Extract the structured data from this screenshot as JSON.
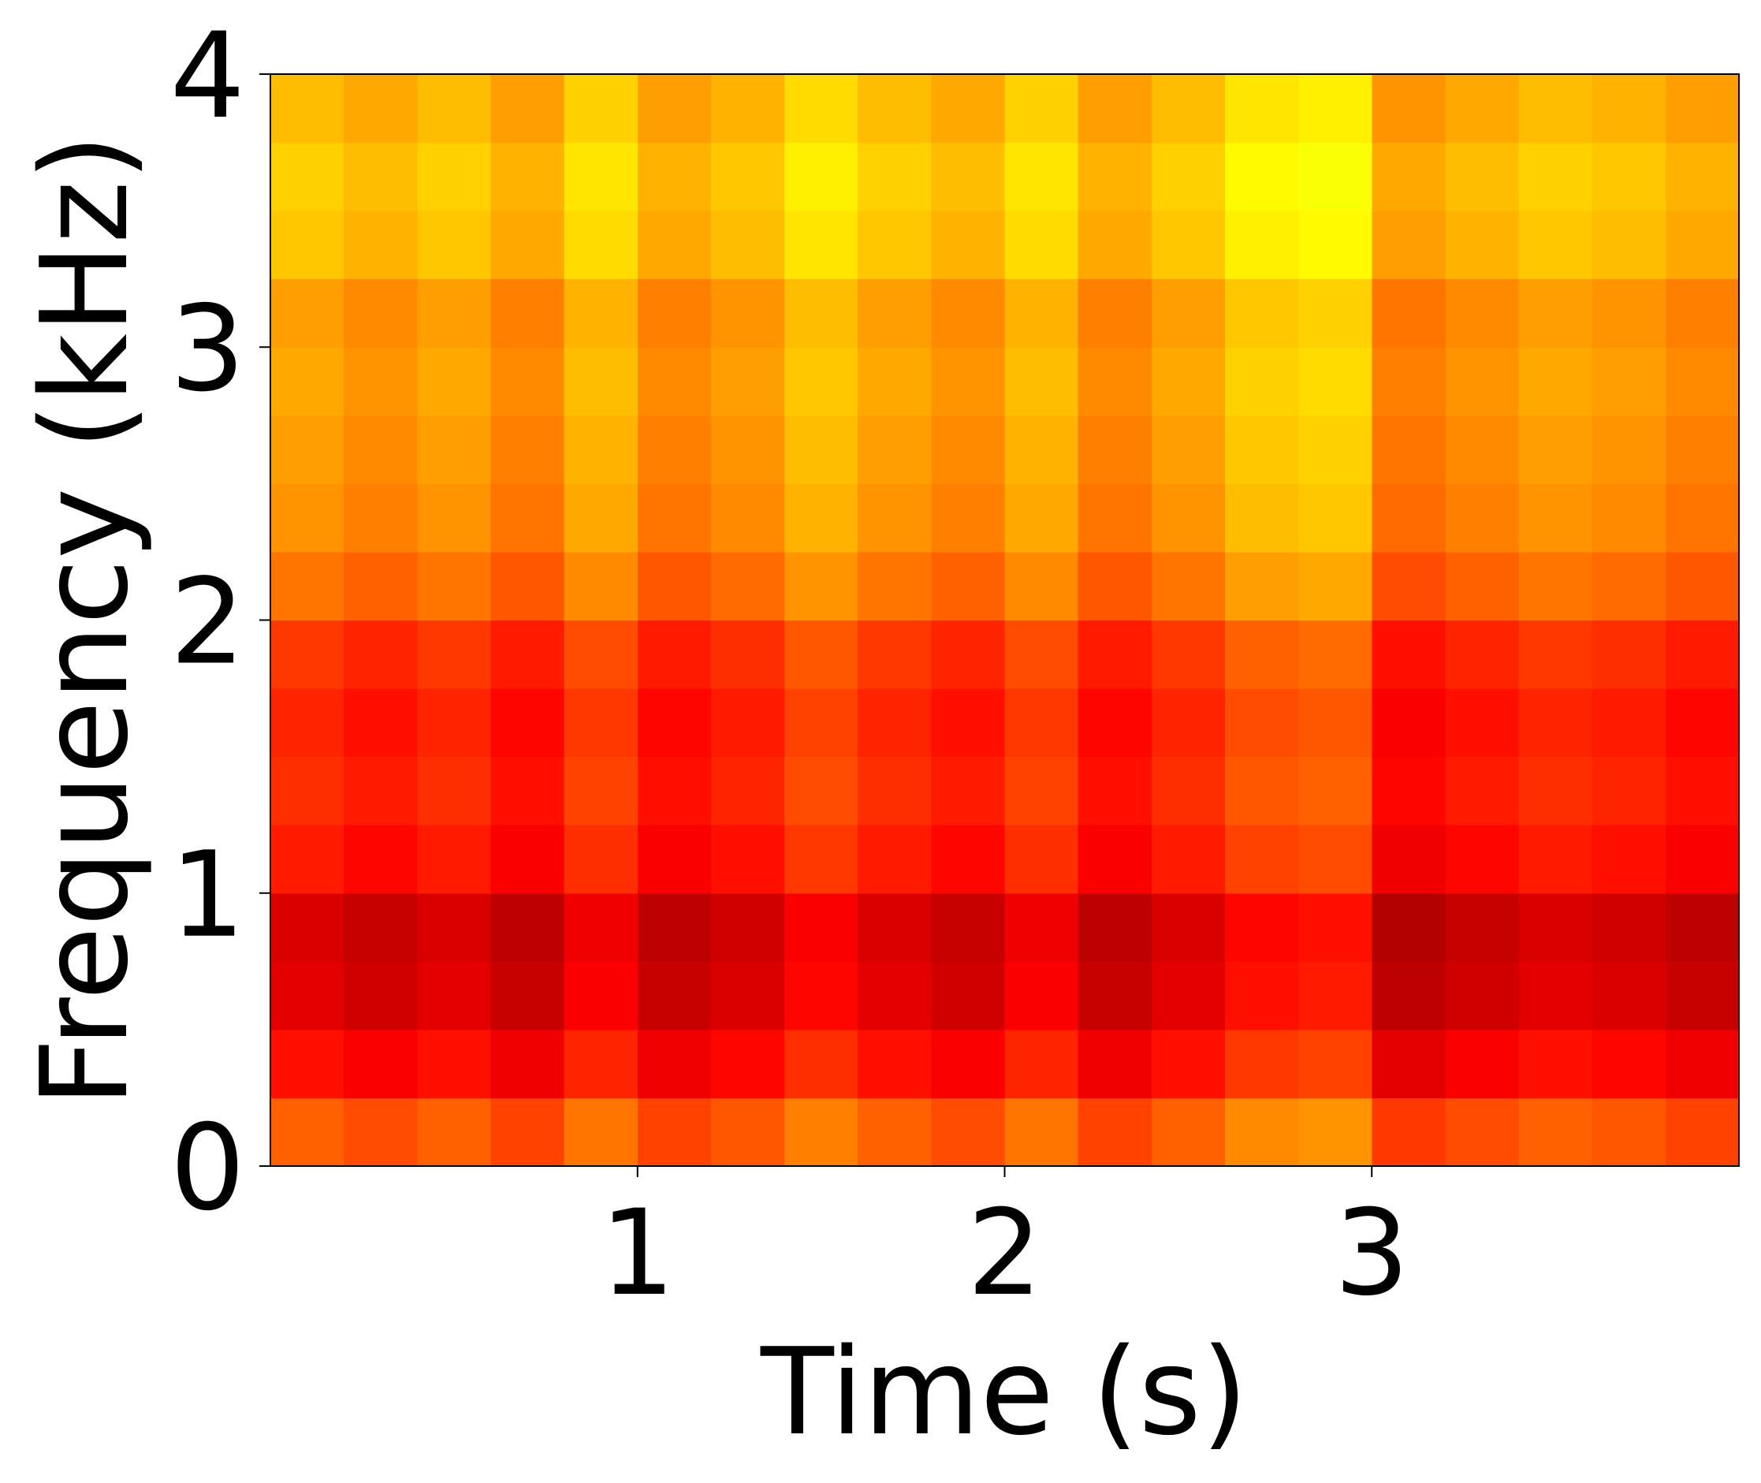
{
  "chart_data": {
    "type": "heatmap",
    "xlabel": "Time (s)",
    "ylabel": "Frequency (kHz)",
    "colormap": "jet",
    "zlim": [
      0,
      1
    ],
    "xlim": [
      0,
      4
    ],
    "ylim": [
      0,
      4
    ],
    "xticks": [
      1,
      2,
      3
    ],
    "yticks": [
      0,
      1,
      2,
      3,
      4
    ],
    "x": [
      0,
      0.2,
      0.4,
      0.6,
      0.8,
      1.0,
      1.2,
      1.4,
      1.6,
      1.8,
      2.0,
      2.2,
      2.4,
      2.6,
      2.8,
      3.0,
      3.2,
      3.4,
      3.6,
      3.8,
      4.0
    ],
    "y": [
      0,
      0.25,
      0.5,
      0.75,
      1.0,
      1.25,
      1.5,
      1.75,
      2.0,
      2.25,
      2.5,
      2.75,
      3.0,
      3.25,
      3.5,
      3.75,
      4.0
    ],
    "values": [
      [
        0.78,
        0.8,
        0.78,
        0.81,
        0.76,
        0.81,
        0.79,
        0.75,
        0.78,
        0.8,
        0.76,
        0.81,
        0.78,
        0.74,
        0.73,
        0.82,
        0.8,
        0.78,
        0.79,
        0.81
      ],
      [
        0.86,
        0.88,
        0.86,
        0.89,
        0.84,
        0.89,
        0.87,
        0.83,
        0.86,
        0.88,
        0.84,
        0.89,
        0.86,
        0.82,
        0.81,
        0.9,
        0.88,
        0.86,
        0.87,
        0.89
      ],
      [
        0.9,
        0.92,
        0.9,
        0.93,
        0.88,
        0.93,
        0.91,
        0.87,
        0.9,
        0.92,
        0.88,
        0.93,
        0.9,
        0.86,
        0.85,
        0.94,
        0.92,
        0.9,
        0.91,
        0.93
      ],
      [
        0.91,
        0.93,
        0.91,
        0.94,
        0.89,
        0.94,
        0.92,
        0.88,
        0.91,
        0.93,
        0.89,
        0.94,
        0.91,
        0.87,
        0.86,
        0.95,
        0.93,
        0.91,
        0.92,
        0.94
      ],
      [
        0.85,
        0.87,
        0.85,
        0.88,
        0.83,
        0.88,
        0.86,
        0.82,
        0.85,
        0.87,
        0.83,
        0.88,
        0.85,
        0.81,
        0.8,
        0.89,
        0.87,
        0.85,
        0.86,
        0.88
      ],
      [
        0.83,
        0.85,
        0.83,
        0.86,
        0.81,
        0.86,
        0.84,
        0.8,
        0.83,
        0.85,
        0.81,
        0.86,
        0.83,
        0.79,
        0.78,
        0.87,
        0.85,
        0.83,
        0.84,
        0.86
      ],
      [
        0.84,
        0.86,
        0.84,
        0.87,
        0.82,
        0.87,
        0.85,
        0.81,
        0.84,
        0.86,
        0.82,
        0.87,
        0.84,
        0.8,
        0.79,
        0.88,
        0.86,
        0.84,
        0.85,
        0.87
      ],
      [
        0.82,
        0.84,
        0.82,
        0.85,
        0.8,
        0.85,
        0.83,
        0.79,
        0.82,
        0.84,
        0.8,
        0.85,
        0.82,
        0.78,
        0.77,
        0.86,
        0.84,
        0.82,
        0.83,
        0.85
      ],
      [
        0.76,
        0.78,
        0.76,
        0.79,
        0.74,
        0.79,
        0.77,
        0.73,
        0.76,
        0.78,
        0.74,
        0.79,
        0.76,
        0.72,
        0.71,
        0.8,
        0.78,
        0.76,
        0.77,
        0.79
      ],
      [
        0.73,
        0.75,
        0.73,
        0.76,
        0.71,
        0.76,
        0.74,
        0.7,
        0.73,
        0.75,
        0.71,
        0.76,
        0.73,
        0.69,
        0.68,
        0.77,
        0.75,
        0.73,
        0.74,
        0.76
      ],
      [
        0.72,
        0.74,
        0.72,
        0.75,
        0.7,
        0.75,
        0.73,
        0.69,
        0.72,
        0.74,
        0.7,
        0.75,
        0.72,
        0.68,
        0.67,
        0.76,
        0.74,
        0.72,
        0.73,
        0.75
      ],
      [
        0.71,
        0.73,
        0.71,
        0.74,
        0.69,
        0.74,
        0.72,
        0.68,
        0.71,
        0.73,
        0.69,
        0.74,
        0.71,
        0.67,
        0.66,
        0.75,
        0.73,
        0.71,
        0.72,
        0.74
      ],
      [
        0.72,
        0.74,
        0.72,
        0.75,
        0.7,
        0.75,
        0.73,
        0.69,
        0.72,
        0.74,
        0.7,
        0.75,
        0.72,
        0.68,
        0.67,
        0.76,
        0.74,
        0.72,
        0.73,
        0.75
      ],
      [
        0.68,
        0.7,
        0.68,
        0.71,
        0.66,
        0.71,
        0.69,
        0.65,
        0.68,
        0.7,
        0.66,
        0.71,
        0.68,
        0.64,
        0.63,
        0.72,
        0.7,
        0.68,
        0.69,
        0.71
      ],
      [
        0.67,
        0.69,
        0.67,
        0.7,
        0.65,
        0.7,
        0.68,
        0.64,
        0.67,
        0.69,
        0.65,
        0.7,
        0.67,
        0.63,
        0.62,
        0.71,
        0.69,
        0.67,
        0.68,
        0.7
      ],
      [
        0.69,
        0.71,
        0.69,
        0.72,
        0.67,
        0.72,
        0.7,
        0.66,
        0.69,
        0.71,
        0.67,
        0.72,
        0.69,
        0.65,
        0.64,
        0.73,
        0.71,
        0.69,
        0.7,
        0.72
      ]
    ]
  }
}
